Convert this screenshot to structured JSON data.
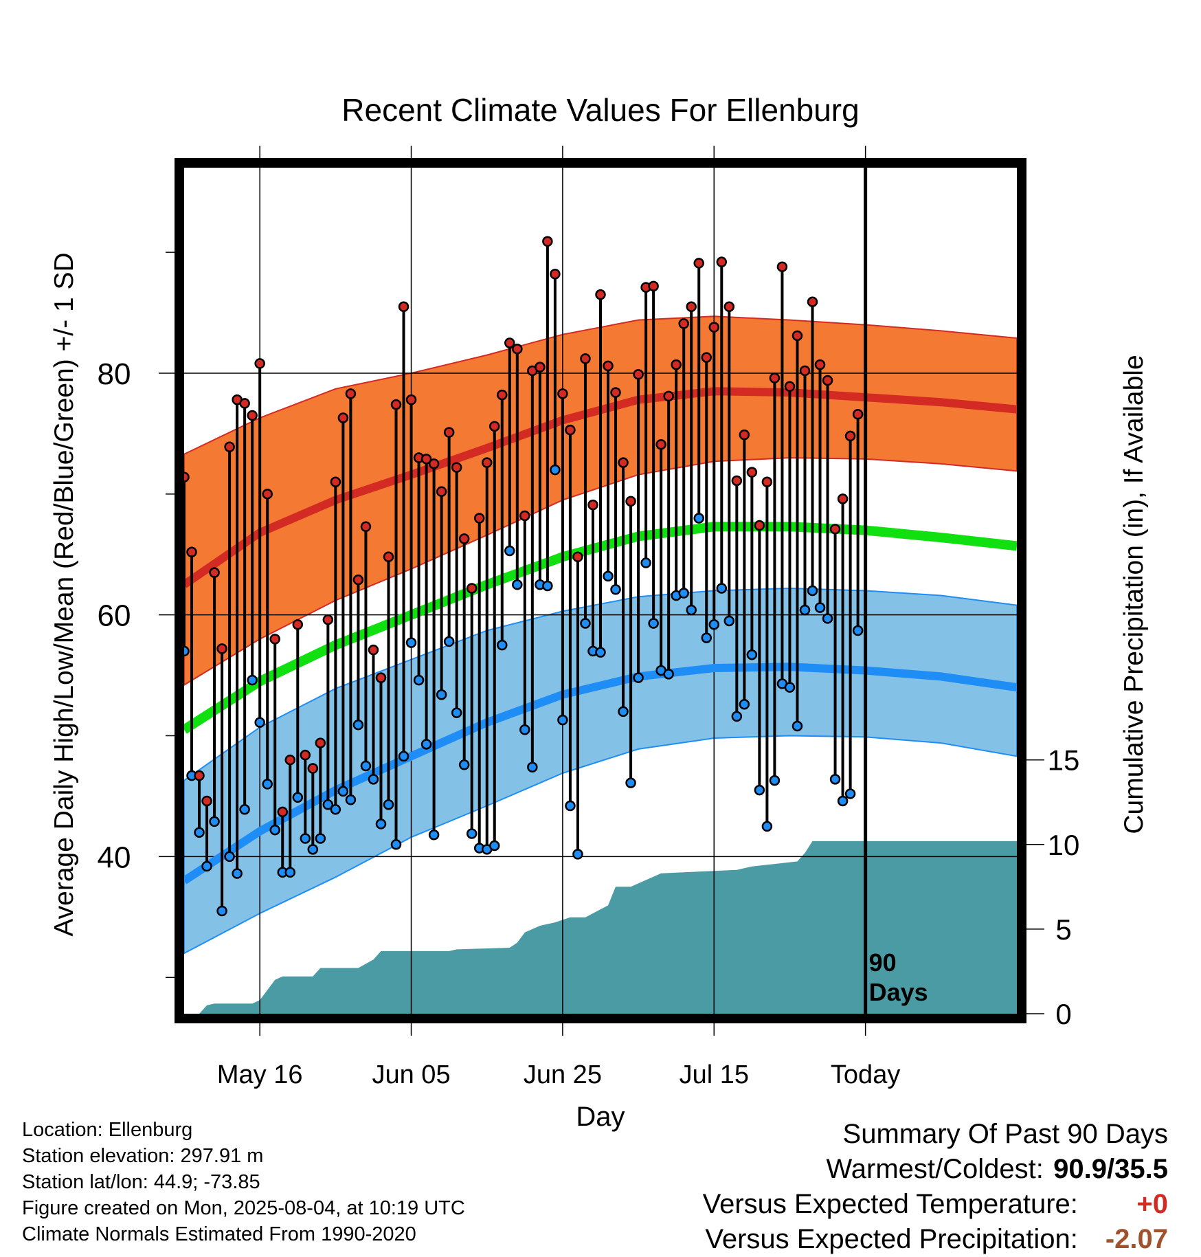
{
  "chart_data": {
    "type": "line",
    "title": "Recent Climate Values For Ellenburg",
    "xlabel": "Day",
    "ylabel": "Average Daily High/Low/Mean (Red/Blue/Green) +/- 1 SD",
    "y2label": "Cumulative Precipitation (in), If Available",
    "x_range": [
      "2025-05-06",
      "2025-08-24"
    ],
    "x_ticks": [
      {
        "date": "2025-05-16",
        "label": "May 16"
      },
      {
        "date": "2025-06-05",
        "label": "Jun 05"
      },
      {
        "date": "2025-06-25",
        "label": "Jun 25"
      },
      {
        "date": "2025-07-15",
        "label": "Jul 15"
      },
      {
        "date": "2025-08-04",
        "label": "Today"
      }
    ],
    "y_range": [
      27,
      97
    ],
    "y_ticks": [
      40,
      60,
      80
    ],
    "y2_range": [
      0,
      50
    ],
    "y2_ticks": [
      0,
      5,
      10,
      15
    ],
    "today_date": "2025-08-04",
    "today_label": [
      "90",
      "Days"
    ],
    "grid": true,
    "normals": {
      "dates": [
        "2025-05-06",
        "2025-05-16",
        "2025-05-26",
        "2025-06-05",
        "2025-06-15",
        "2025-06-25",
        "2025-07-05",
        "2025-07-15",
        "2025-07-25",
        "2025-08-04",
        "2025-08-14",
        "2025-08-24"
      ],
      "high_mean": [
        62.5,
        66.8,
        69.5,
        71.6,
        73.8,
        76.1,
        77.8,
        78.5,
        78.4,
        78.0,
        77.6,
        77.0
      ],
      "high_upper": [
        73.3,
        76.3,
        78.7,
        80.0,
        81.5,
        83.2,
        84.4,
        84.7,
        84.4,
        84.0,
        83.5,
        82.9
      ],
      "high_lower": [
        54.2,
        58.0,
        61.2,
        63.8,
        66.6,
        69.5,
        71.6,
        72.7,
        73.0,
        72.9,
        72.5,
        71.9
      ],
      "mean": [
        50.5,
        54.5,
        57.5,
        60.0,
        62.5,
        64.8,
        66.5,
        67.3,
        67.3,
        67.0,
        66.4,
        65.7
      ],
      "low_mean": [
        38.0,
        42.1,
        45.5,
        48.3,
        51.1,
        53.4,
        54.9,
        55.6,
        55.7,
        55.4,
        54.9,
        54.0
      ],
      "low_upper": [
        46.3,
        50.7,
        53.9,
        56.3,
        58.7,
        60.3,
        61.5,
        62.0,
        62.2,
        62.0,
        61.6,
        60.8
      ],
      "low_lower": [
        32.0,
        35.3,
        38.3,
        41.6,
        44.2,
        46.9,
        48.9,
        49.8,
        50.0,
        49.9,
        49.4,
        48.3
      ]
    },
    "observed": {
      "dates": [
        "2025-05-06",
        "2025-05-07",
        "2025-05-08",
        "2025-05-09",
        "2025-05-10",
        "2025-05-11",
        "2025-05-12",
        "2025-05-13",
        "2025-05-14",
        "2025-05-15",
        "2025-05-16",
        "2025-05-17",
        "2025-05-18",
        "2025-05-19",
        "2025-05-20",
        "2025-05-21",
        "2025-05-22",
        "2025-05-23",
        "2025-05-24",
        "2025-05-25",
        "2025-05-26",
        "2025-05-27",
        "2025-05-28",
        "2025-05-29",
        "2025-05-30",
        "2025-05-31",
        "2025-06-01",
        "2025-06-02",
        "2025-06-03",
        "2025-06-04",
        "2025-06-05",
        "2025-06-06",
        "2025-06-07",
        "2025-06-08",
        "2025-06-09",
        "2025-06-10",
        "2025-06-11",
        "2025-06-12",
        "2025-06-13",
        "2025-06-14",
        "2025-06-15",
        "2025-06-16",
        "2025-06-17",
        "2025-06-18",
        "2025-06-19",
        "2025-06-20",
        "2025-06-21",
        "2025-06-22",
        "2025-06-23",
        "2025-06-24",
        "2025-06-25",
        "2025-06-26",
        "2025-06-27",
        "2025-06-28",
        "2025-06-29",
        "2025-06-30",
        "2025-07-01",
        "2025-07-02",
        "2025-07-03",
        "2025-07-04",
        "2025-07-05",
        "2025-07-06",
        "2025-07-07",
        "2025-07-08",
        "2025-07-09",
        "2025-07-10",
        "2025-07-11",
        "2025-07-12",
        "2025-07-13",
        "2025-07-14",
        "2025-07-15",
        "2025-07-16",
        "2025-07-17",
        "2025-07-18",
        "2025-07-19",
        "2025-07-20",
        "2025-07-21",
        "2025-07-22",
        "2025-07-23",
        "2025-07-24",
        "2025-07-25",
        "2025-07-26",
        "2025-07-27",
        "2025-07-28",
        "2025-07-29",
        "2025-07-30",
        "2025-07-31",
        "2025-08-01",
        "2025-08-02",
        "2025-08-03"
      ],
      "high": [
        71.4,
        65.2,
        46.7,
        44.6,
        63.5,
        57.2,
        73.9,
        77.8,
        77.5,
        76.5,
        80.8,
        70.0,
        58.0,
        43.7,
        48.0,
        59.2,
        48.4,
        47.3,
        49.4,
        59.6,
        71.0,
        76.3,
        78.3,
        62.9,
        67.3,
        57.1,
        54.8,
        64.8,
        77.4,
        85.5,
        77.8,
        73.0,
        72.9,
        72.5,
        70.2,
        75.1,
        72.2,
        66.3,
        62.2,
        68.0,
        72.6,
        75.6,
        78.2,
        82.5,
        82.0,
        68.2,
        80.2,
        80.5,
        90.9,
        88.2,
        78.3,
        75.3,
        64.8,
        81.2,
        69.1,
        86.5,
        80.6,
        78.4,
        72.6,
        69.4,
        79.9,
        87.1,
        87.2,
        74.1,
        78.1,
        80.7,
        84.1,
        85.5,
        89.1,
        81.3,
        83.8,
        89.2,
        85.5,
        71.1,
        74.9,
        71.8,
        67.4,
        71.0,
        79.6,
        88.8,
        78.9,
        83.1,
        80.2,
        85.9,
        80.7,
        79.4,
        67.1,
        69.6,
        74.8,
        76.6
      ],
      "low": [
        57.0,
        46.7,
        42.0,
        39.2,
        42.9,
        35.5,
        40.0,
        38.6,
        43.9,
        54.6,
        51.1,
        46.0,
        42.2,
        38.7,
        38.7,
        44.9,
        41.5,
        40.6,
        41.5,
        44.3,
        43.9,
        45.4,
        44.7,
        50.9,
        47.5,
        46.4,
        42.7,
        44.3,
        41.0,
        48.3,
        57.7,
        54.6,
        49.3,
        41.8,
        53.4,
        57.8,
        51.9,
        47.6,
        41.9,
        40.7,
        40.6,
        40.9,
        57.5,
        65.3,
        62.5,
        50.5,
        47.4,
        62.5,
        62.4,
        72.0,
        51.3,
        44.2,
        40.2,
        59.3,
        57.0,
        56.9,
        63.2,
        62.1,
        52.0,
        46.1,
        54.8,
        64.3,
        59.3,
        55.4,
        55.1,
        61.6,
        61.8,
        60.4,
        68.0,
        58.1,
        59.2,
        62.2,
        59.5,
        51.6,
        52.6,
        56.7,
        45.5,
        42.5,
        46.3,
        54.3,
        54.0,
        50.8,
        60.4,
        62.0,
        60.6,
        59.7,
        46.4,
        44.6,
        45.2,
        58.7
      ]
    },
    "precip_cumulative": {
      "dates": [
        "2025-05-06",
        "2025-05-08",
        "2025-05-09",
        "2025-05-10",
        "2025-05-15",
        "2025-05-16",
        "2025-05-18",
        "2025-05-19",
        "2025-05-23",
        "2025-05-24",
        "2025-05-29",
        "2025-05-31",
        "2025-06-01",
        "2025-06-10",
        "2025-06-11",
        "2025-06-18",
        "2025-06-19",
        "2025-06-20",
        "2025-06-21",
        "2025-06-22",
        "2025-06-24",
        "2025-06-26",
        "2025-06-28",
        "2025-07-01",
        "2025-07-02",
        "2025-07-04",
        "2025-07-08",
        "2025-07-18",
        "2025-07-20",
        "2025-07-26",
        "2025-07-27",
        "2025-07-28",
        "2025-08-04",
        "2025-08-24"
      ],
      "values": [
        0,
        0,
        0.5,
        0.6,
        0.6,
        0.8,
        2.0,
        2.2,
        2.2,
        2.7,
        2.7,
        3.2,
        3.7,
        3.7,
        3.8,
        3.9,
        4.2,
        4.8,
        5.0,
        5.2,
        5.4,
        5.7,
        5.7,
        6.4,
        7.5,
        7.5,
        8.3,
        8.5,
        8.7,
        9.0,
        9.5,
        10.2,
        10.2,
        10.2
      ]
    }
  },
  "info": {
    "location": "Location: Ellenburg",
    "elevation": "Station elevation: 297.91 m",
    "latlon": "Station lat/lon: 44.9; -73.85",
    "created": "Figure created on Mon, 2025-08-04, at 10:19 UTC",
    "normals": "Climate Normals Estimated From 1990-2020"
  },
  "summary": {
    "title": "Summary Of Past 90 Days",
    "warm_cold_label": "Warmest/Coldest:",
    "warm_cold_value": "90.9/35.5",
    "temp_label": "Versus Expected Temperature:",
    "temp_value": "+0",
    "precip_label": "Versus Expected Precipitation:",
    "precip_value": "-2.07"
  },
  "colors": {
    "high_band": "#f47932",
    "high_mean": "#d42a24",
    "mean": "#10e010",
    "low_band": "#84c1e6",
    "low_mean": "#1e8ef6",
    "low_band_edge": "#1e8ef6",
    "precip": "#4a9ba4",
    "high_dot": "#d42a24",
    "low_dot": "#1e8ef6",
    "temp_value": "#d42a24",
    "precip_value": "#a0522d"
  }
}
